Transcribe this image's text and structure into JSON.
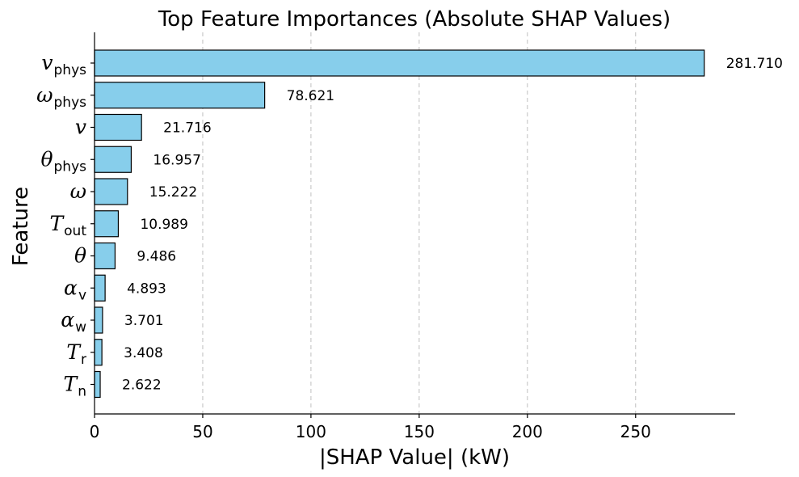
{
  "chart_data": {
    "type": "bar",
    "orientation": "horizontal",
    "title": "Top Feature Importances (Absolute SHAP Values)",
    "xlabel": "|SHAP Value| (kW)",
    "ylabel": "Feature",
    "xlim": [
      0,
      296
    ],
    "xticks": [
      0,
      50,
      100,
      150,
      200,
      250
    ],
    "xtick_labels": [
      "0",
      "50",
      "100",
      "150",
      "200",
      "250"
    ],
    "grid": "x-dashed",
    "bar_color": "#87CEEB",
    "edge_color": "#000000",
    "categories": [
      {
        "base": "v",
        "sub": "phys"
      },
      {
        "base": "ω",
        "sub": "phys"
      },
      {
        "base": "v",
        "sub": ""
      },
      {
        "base": "θ",
        "sub": "phys"
      },
      {
        "base": "ω",
        "sub": ""
      },
      {
        "base": "T",
        "sub": "out"
      },
      {
        "base": "θ",
        "sub": ""
      },
      {
        "base": "α",
        "sub": "v"
      },
      {
        "base": "α",
        "sub": "w"
      },
      {
        "base": "T",
        "sub": "r"
      },
      {
        "base": "T",
        "sub": "n"
      }
    ],
    "values": [
      281.71,
      78.621,
      21.716,
      16.957,
      15.222,
      10.989,
      9.486,
      4.893,
      3.701,
      3.408,
      2.622
    ],
    "value_labels": [
      "281.710",
      "78.621",
      "21.716",
      "16.957",
      "15.222",
      "10.989",
      "9.486",
      "4.893",
      "3.701",
      "3.408",
      "2.622"
    ]
  }
}
